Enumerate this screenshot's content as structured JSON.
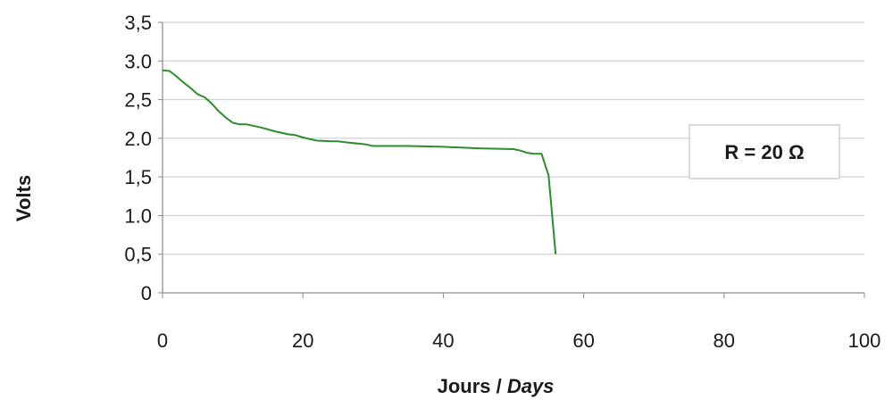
{
  "chart_data": {
    "type": "line",
    "xlabel_main": "Jours / ",
    "xlabel_italic": "Days",
    "ylabel": "Volts",
    "xlim": [
      0,
      100
    ],
    "ylim": [
      0,
      3.5
    ],
    "x_ticks": [
      0,
      20,
      40,
      60,
      80,
      100
    ],
    "x_tick_labels": [
      "0",
      "20",
      "40",
      "60",
      "80",
      "100"
    ],
    "y_ticks": [
      0,
      0.5,
      1.0,
      1.5,
      2.0,
      2.5,
      3.0,
      3.5
    ],
    "y_tick_labels": [
      "0",
      "0,5",
      "1.0",
      "1,5",
      "2.0",
      "2,5",
      "3.0",
      "3,5"
    ],
    "grid": "horizontal",
    "annotation": "R = 20 Ω",
    "annotation_position": "right",
    "series": [
      {
        "color": "#2e8b2e",
        "x": [
          0,
          1,
          2,
          3,
          4,
          5,
          6,
          7,
          8,
          9,
          10,
          11,
          12,
          14,
          16,
          18,
          19,
          20,
          22,
          24,
          25,
          26,
          27,
          28,
          29,
          30,
          32,
          35,
          40,
          45,
          50,
          51,
          52,
          53,
          54,
          55,
          56
        ],
        "y": [
          2.88,
          2.87,
          2.8,
          2.72,
          2.65,
          2.57,
          2.53,
          2.45,
          2.35,
          2.27,
          2.2,
          2.18,
          2.18,
          2.14,
          2.09,
          2.05,
          2.04,
          2.01,
          1.97,
          1.96,
          1.96,
          1.95,
          1.94,
          1.93,
          1.92,
          1.9,
          1.9,
          1.9,
          1.89,
          1.87,
          1.86,
          1.84,
          1.81,
          1.8,
          1.8,
          1.52,
          0.5
        ]
      }
    ]
  }
}
